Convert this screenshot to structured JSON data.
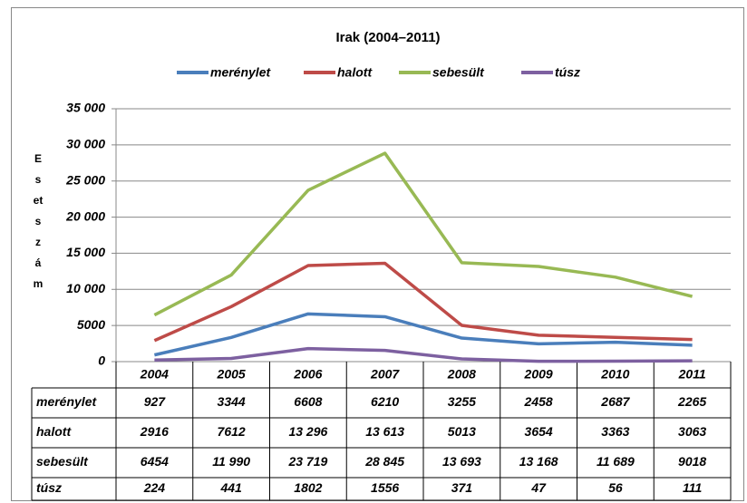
{
  "chart_data": {
    "type": "line",
    "title": "Irak (2004–2011)",
    "y_label": "Esetszám",
    "categories": [
      "2004",
      "2005",
      "2006",
      "2007",
      "2008",
      "2009",
      "2010",
      "2011"
    ],
    "series": [
      {
        "name": "merénylet",
        "color": "#4a7ebb",
        "values": [
          927,
          3344,
          6608,
          6210,
          3255,
          2458,
          2687,
          2265
        ],
        "value_labels": [
          "927",
          "3344",
          "6608",
          "6210",
          "3255",
          "2458",
          "2687",
          "2265"
        ]
      },
      {
        "name": "halott",
        "color": "#be4b48",
        "values": [
          2916,
          7612,
          13296,
          13613,
          5013,
          3654,
          3363,
          3063
        ],
        "value_labels": [
          "2916",
          "7612",
          "13 296",
          "13 613",
          "5013",
          "3654",
          "3363",
          "3063"
        ]
      },
      {
        "name": "sebesült",
        "color": "#98b954",
        "values": [
          6454,
          11990,
          23719,
          28845,
          13693,
          13168,
          11689,
          9018
        ],
        "value_labels": [
          "6454",
          "11 990",
          "23 719",
          "28 845",
          "13 693",
          "13 168",
          "11 689",
          "9018"
        ]
      },
      {
        "name": "túsz",
        "color": "#7d60a0",
        "values": [
          224,
          441,
          1802,
          1556,
          371,
          47,
          56,
          111
        ],
        "value_labels": [
          "224",
          "441",
          "1802",
          "1556",
          "371",
          "47",
          "56",
          "111"
        ]
      }
    ],
    "ylim": [
      0,
      35000
    ],
    "yticks": [
      0,
      5000,
      {
        "value": 10000,
        "label": "10 000"
      },
      {
        "value": 15000,
        "label": "15 000"
      },
      {
        "value": 20000,
        "label": "20 000"
      },
      {
        "value": 25000,
        "label": "25 000"
      },
      {
        "value": 30000,
        "label": "30 000"
      },
      {
        "value": 35000,
        "label": "35 000"
      }
    ],
    "grid": true,
    "legend": "top"
  }
}
